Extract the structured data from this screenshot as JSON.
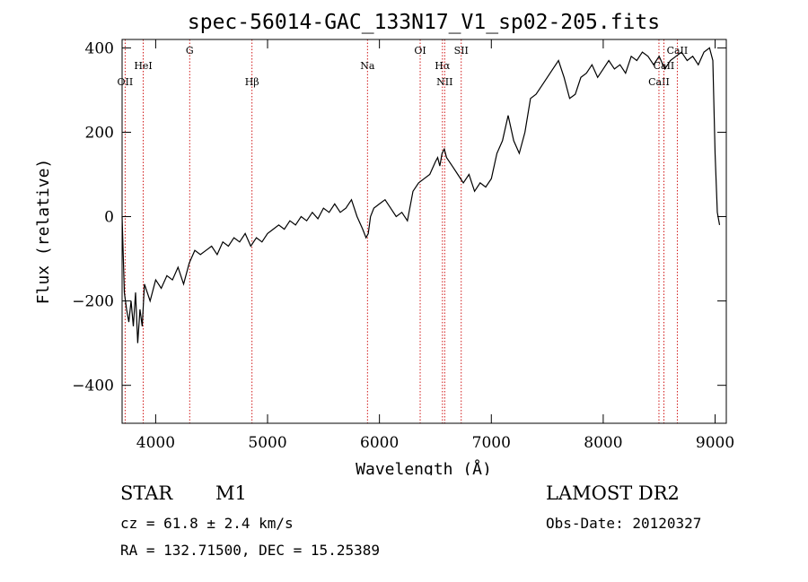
{
  "chart_data": {
    "type": "line",
    "title": "spec-56014-GAC_133N17_V1_sp02-205.fits",
    "xlabel": "Wavelength (Å)",
    "ylabel": "Flux (relative)",
    "xlim": [
      3700,
      9100
    ],
    "ylim": [
      -490,
      420
    ],
    "x_ticks": [
      4000,
      5000,
      6000,
      7000,
      8000,
      9000
    ],
    "y_ticks": [
      -400,
      -200,
      0,
      200,
      400
    ],
    "grid": false,
    "series": [
      {
        "values_x": [
          3700,
          3720,
          3740,
          3760,
          3780,
          3800,
          3820,
          3840,
          3860,
          3880,
          3900,
          3950,
          4000,
          4050,
          4100,
          4150,
          4200,
          4250,
          4300,
          4350,
          4400,
          4450,
          4500,
          4550,
          4600,
          4650,
          4700,
          4750,
          4800,
          4850,
          4900,
          4950,
          5000,
          5050,
          5100,
          5150,
          5200,
          5250,
          5300,
          5350,
          5400,
          5450,
          5500,
          5550,
          5600,
          5650,
          5700,
          5750,
          5800,
          5850,
          5880,
          5900,
          5920,
          5950,
          6000,
          6050,
          6100,
          6150,
          6200,
          6250,
          6300,
          6350,
          6400,
          6450,
          6500,
          6520,
          6540,
          6560,
          6580,
          6600,
          6650,
          6700,
          6750,
          6800,
          6850,
          6900,
          6950,
          7000,
          7050,
          7100,
          7150,
          7200,
          7250,
          7300,
          7350,
          7400,
          7450,
          7500,
          7550,
          7600,
          7650,
          7700,
          7750,
          7800,
          7850,
          7900,
          7950,
          8000,
          8050,
          8100,
          8150,
          8200,
          8250,
          8300,
          8350,
          8400,
          8450,
          8500,
          8550,
          8600,
          8650,
          8700,
          8750,
          8800,
          8850,
          8900,
          8950,
          8980,
          9000,
          9020,
          9040
        ],
        "values_y": [
          0,
          -180,
          -220,
          -250,
          -200,
          -260,
          -180,
          -300,
          -220,
          -260,
          -160,
          -200,
          -150,
          -170,
          -140,
          -150,
          -120,
          -160,
          -110,
          -80,
          -90,
          -80,
          -70,
          -90,
          -60,
          -70,
          -50,
          -60,
          -40,
          -70,
          -50,
          -60,
          -40,
          -30,
          -20,
          -30,
          -10,
          -20,
          0,
          -10,
          10,
          -5,
          20,
          10,
          30,
          10,
          20,
          40,
          0,
          -30,
          -50,
          -40,
          0,
          20,
          30,
          40,
          20,
          0,
          10,
          -10,
          60,
          80,
          90,
          100,
          130,
          140,
          120,
          150,
          160,
          140,
          120,
          100,
          80,
          100,
          60,
          80,
          70,
          90,
          150,
          180,
          240,
          180,
          150,
          200,
          280,
          290,
          310,
          330,
          350,
          370,
          330,
          280,
          290,
          330,
          340,
          360,
          330,
          350,
          370,
          350,
          360,
          340,
          380,
          370,
          390,
          380,
          360,
          380,
          350,
          370,
          380,
          390,
          370,
          380,
          360,
          390,
          400,
          370,
          150,
          10,
          -20
        ]
      }
    ],
    "lines": [
      {
        "label": "OII",
        "x": 3727,
        "row": 3
      },
      {
        "label": "HeI",
        "x": 3889,
        "row": 2
      },
      {
        "label": "G",
        "x": 4304,
        "row": 1
      },
      {
        "label": "Hβ",
        "x": 4861,
        "row": 3
      },
      {
        "label": "Na",
        "x": 5893,
        "row": 2
      },
      {
        "label": "OI",
        "x": 6364,
        "row": 1
      },
      {
        "label": "Hα",
        "x": 6563,
        "row": 2
      },
      {
        "label": "NII",
        "x": 6583,
        "row": 3
      },
      {
        "label": "SII",
        "x": 6731,
        "row": 1
      },
      {
        "label": "CaII",
        "x": 8498,
        "row": 3
      },
      {
        "label": "CaII",
        "x": 8542,
        "row": 2
      },
      {
        "label": "CaII",
        "x": 8662,
        "row": 1
      }
    ],
    "line_color": "#cc0000"
  },
  "info": {
    "class_label": "STAR",
    "subclass_label": "M1",
    "redshift": "cz = 61.8 ± 2.4 km/s",
    "coords": "RA = 132.71500, DEC =  15.25389",
    "survey": "LAMOST DR2",
    "obs_date": "Obs-Date: 20120327"
  }
}
